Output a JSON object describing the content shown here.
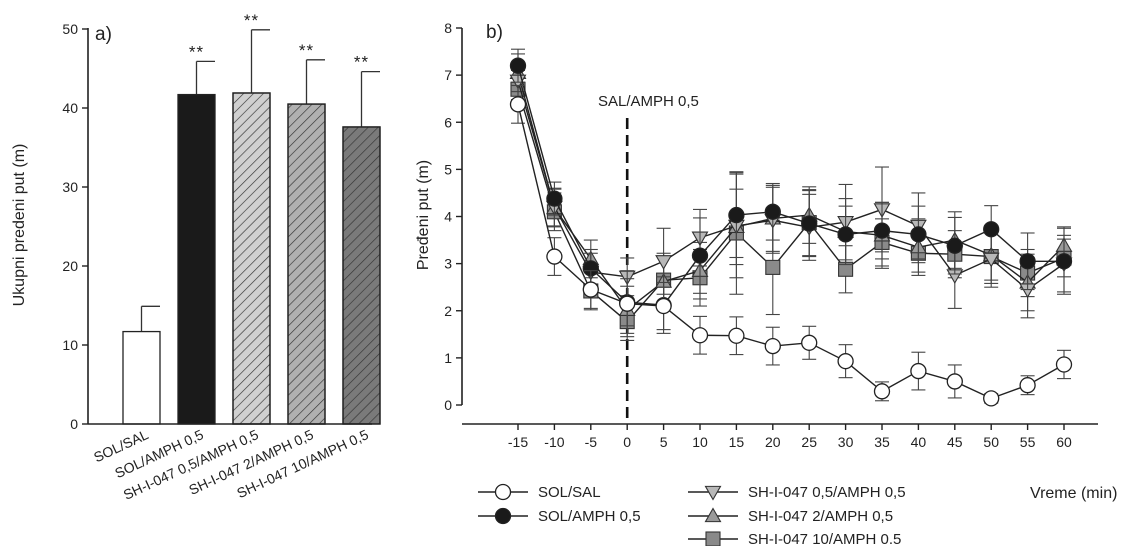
{
  "chart_data": [
    {
      "type": "bar",
      "panel_label": "a)",
      "ylabel": "Ukupni predeni put (m)",
      "xlabel": "",
      "ylim": [
        0,
        50
      ],
      "yticks": [
        0,
        10,
        20,
        30,
        40,
        50
      ],
      "categories": [
        "SOL/SAL",
        "SOL/AMPH 0,5",
        "SH-I-047 0,5/AMPH 0,5",
        "SH-I-047 2/AMPH 0,5",
        "SH-I-047 10/AMPH 0,5"
      ],
      "values": [
        11.7,
        41.7,
        41.9,
        40.5,
        37.6
      ],
      "errors": [
        3.2,
        4.2,
        8.0,
        5.6,
        7.0
      ],
      "annotations": [
        "",
        "**",
        "**",
        "**",
        "**"
      ],
      "fills": [
        "#ffffff",
        "#1a1a1a",
        "#d0d0d0",
        "#b0b0b0",
        "#7a7a7a"
      ],
      "hatched": [
        false,
        false,
        true,
        true,
        true
      ]
    },
    {
      "type": "line",
      "panel_label": "b)",
      "ylabel": "Pređeni put (m)",
      "xlabel": "Vreme (min)",
      "ylim": [
        0,
        8
      ],
      "yticks": [
        0,
        1,
        2,
        3,
        4,
        5,
        6,
        7,
        8
      ],
      "x": [
        -15,
        -10,
        -5,
        0,
        5,
        10,
        15,
        20,
        25,
        30,
        35,
        40,
        45,
        50,
        55,
        60
      ],
      "vline": {
        "x": 0,
        "label": "SAL/AMPH 0,5"
      },
      "series": [
        {
          "name": "SOL/SAL",
          "marker": "circle",
          "fill": "#ffffff",
          "values": [
            6.38,
            3.15,
            2.45,
            2.15,
            2.1,
            1.48,
            1.47,
            1.25,
            1.32,
            0.93,
            0.29,
            0.72,
            0.5,
            0.14,
            0.42,
            0.86
          ],
          "errors": [
            0.4,
            0.4,
            0.4,
            0.7,
            0.5,
            0.4,
            0.4,
            0.4,
            0.35,
            0.35,
            0.2,
            0.4,
            0.35,
            0.1,
            0.2,
            0.3
          ]
        },
        {
          "name": "SOL/AMPH 0,5",
          "marker": "circle",
          "fill": "#1a1a1a",
          "values": [
            7.2,
            4.38,
            2.9,
            2.18,
            2.12,
            3.17,
            4.03,
            4.1,
            3.85,
            3.62,
            3.7,
            3.62,
            3.38,
            3.73,
            3.05,
            3.05
          ],
          "errors": [
            0.35,
            0.35,
            0.4,
            0.5,
            0.6,
            0.8,
            0.9,
            0.6,
            0.7,
            0.6,
            0.6,
            0.6,
            0.6,
            0.5,
            0.6,
            0.7
          ]
        },
        {
          "name": "SH-I-047 0,5/AMPH 0,5",
          "marker": "triangle-down",
          "fill": "#b8b8b8",
          "values": [
            6.88,
            4.2,
            2.82,
            2.72,
            3.05,
            3.55,
            3.8,
            3.92,
            3.77,
            3.88,
            4.15,
            3.8,
            2.75,
            3.1,
            2.45,
            3.0
          ],
          "errors": [
            0.4,
            0.4,
            0.4,
            0.4,
            0.7,
            0.6,
            1.1,
            0.7,
            0.7,
            0.8,
            0.9,
            0.7,
            0.7,
            0.6,
            0.6,
            0.6
          ]
        },
        {
          "name": "SH-I-047 2/AMPH 0,5",
          "marker": "triangle-up",
          "fill": "#9a9a9a",
          "values": [
            7.05,
            4.18,
            3.1,
            2.02,
            2.62,
            2.85,
            3.78,
            3.96,
            4.03,
            3.68,
            3.6,
            3.35,
            3.5,
            3.18,
            2.6,
            3.38
          ],
          "errors": [
            0.4,
            0.4,
            0.4,
            0.5,
            0.6,
            0.6,
            0.8,
            0.7,
            0.6,
            0.7,
            0.7,
            0.6,
            0.6,
            0.6,
            0.6,
            0.4
          ]
        },
        {
          "name": "SH-I-047 10/AMPH 0.5",
          "marker": "square",
          "fill": "#8a8a8a",
          "values": [
            6.7,
            4.1,
            2.42,
            1.77,
            2.65,
            2.7,
            3.65,
            2.92,
            3.87,
            2.88,
            3.45,
            3.22,
            3.2,
            3.15,
            2.8,
            3.12
          ],
          "errors": [
            0.4,
            0.4,
            0.4,
            0.4,
            0.5,
            0.6,
            1.3,
            1.0,
            0.7,
            0.5,
            0.5,
            0.4,
            0.5,
            0.5,
            0.5,
            0.4
          ]
        }
      ]
    }
  ]
}
